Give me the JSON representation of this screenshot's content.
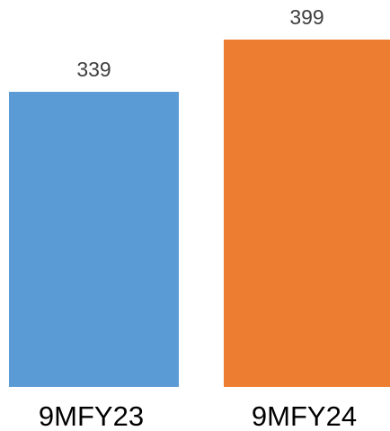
{
  "chart_data": {
    "type": "bar",
    "categories": [
      "9MFY23",
      "9MFY24"
    ],
    "values": [
      339,
      399
    ],
    "colors": [
      "#5b9bd5",
      "#ed7d31"
    ]
  }
}
